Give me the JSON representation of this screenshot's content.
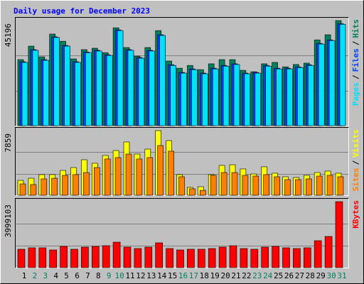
{
  "title": "Daily usage for December 2023",
  "legend_separator": "/",
  "chart_data": [
    {
      "type": "bar",
      "ylim": [
        0,
        45196
      ],
      "yticks": [
        45196
      ],
      "series": [
        {
          "name": "Hits",
          "color": "#00805C",
          "values": [
            28400,
            34200,
            29600,
            39400,
            36300,
            28700,
            32700,
            33300,
            31400,
            42100,
            33600,
            29900,
            33600,
            40900,
            27800,
            24700,
            25900,
            24100,
            26600,
            28400,
            28400,
            23800,
            23200,
            26600,
            27200,
            25300,
            26300,
            26900,
            36900,
            39100,
            45196
          ]
        },
        {
          "name": "Files",
          "color": "#0040FF",
          "values": [
            27500,
            32700,
            28400,
            38200,
            34500,
            27500,
            31700,
            32400,
            30500,
            41200,
            32700,
            29300,
            32400,
            39100,
            26200,
            22900,
            24400,
            22600,
            24700,
            25900,
            26600,
            22600,
            22900,
            25900,
            24700,
            24700,
            25300,
            26200,
            35400,
            36900,
            43900
          ]
        },
        {
          "name": "Pages",
          "color": "#00E0FF",
          "values": [
            27200,
            32400,
            28100,
            37900,
            34200,
            27200,
            31400,
            32100,
            30200,
            40900,
            32400,
            29000,
            32100,
            38800,
            25900,
            22600,
            24100,
            22300,
            24400,
            25600,
            26300,
            22300,
            22600,
            25600,
            24400,
            24400,
            25000,
            25900,
            35100,
            36600,
            43600
          ]
        }
      ]
    },
    {
      "type": "bar",
      "ylim": [
        0,
        7859
      ],
      "yticks": [
        7859
      ],
      "series": [
        {
          "name": "Visits",
          "color": "#FFFF00",
          "values": [
            1810,
            2070,
            2510,
            2510,
            3020,
            3370,
            4320,
            3890,
            4840,
            5440,
            6480,
            5010,
            5610,
            7859,
            6650,
            2510,
            950,
            1040,
            2510,
            3630,
            3710,
            3200,
            2590,
            3460,
            2680,
            2250,
            2160,
            2420,
            2760,
            2940,
            2680
          ]
        },
        {
          "name": "Sites",
          "color": "#FF8000",
          "values": [
            1380,
            1300,
            1990,
            2070,
            2420,
            2510,
            2760,
            3370,
            4410,
            4580,
            5010,
            4410,
            4580,
            6050,
            5360,
            2250,
            780,
            600,
            2420,
            2760,
            2760,
            2420,
            2330,
            2510,
            2250,
            1900,
            1900,
            1990,
            2330,
            2420,
            2250
          ]
        }
      ]
    },
    {
      "type": "bar",
      "ylim": [
        0,
        3999103
      ],
      "yticks": [
        3999103
      ],
      "categories": [
        "1",
        "2",
        "3",
        "4",
        "5",
        "6",
        "7",
        "8",
        "9",
        "10",
        "11",
        "12",
        "13",
        "14",
        "15",
        "16",
        "17",
        "18",
        "19",
        "20",
        "21",
        "22",
        "23",
        "24",
        "25",
        "26",
        "27",
        "28",
        "29",
        "30",
        "31"
      ],
      "category_colors": [
        "#000000",
        "#00805C",
        "#00805C",
        "#000000",
        "#000000",
        "#000000",
        "#000000",
        "#000000",
        "#00805C",
        "#00805C",
        "#000000",
        "#000000",
        "#000000",
        "#000000",
        "#000000",
        "#00805C",
        "#00805C",
        "#000000",
        "#000000",
        "#000000",
        "#000000",
        "#000000",
        "#00805C",
        "#00805C",
        "#000000",
        "#000000",
        "#000000",
        "#000000",
        "#000000",
        "#00805C",
        "#00805C"
      ],
      "series": [
        {
          "name": "KBytes",
          "color": "#FF0000",
          "values": [
            1118000,
            1204000,
            1204000,
            1075000,
            1290000,
            1118000,
            1247000,
            1290000,
            1333000,
            1548000,
            1247000,
            1161000,
            1247000,
            1505000,
            1161000,
            1075000,
            1118000,
            1118000,
            1161000,
            1247000,
            1333000,
            1161000,
            1118000,
            1247000,
            1290000,
            1204000,
            1161000,
            1204000,
            1634000,
            1892000,
            3999103
          ]
        }
      ]
    }
  ]
}
